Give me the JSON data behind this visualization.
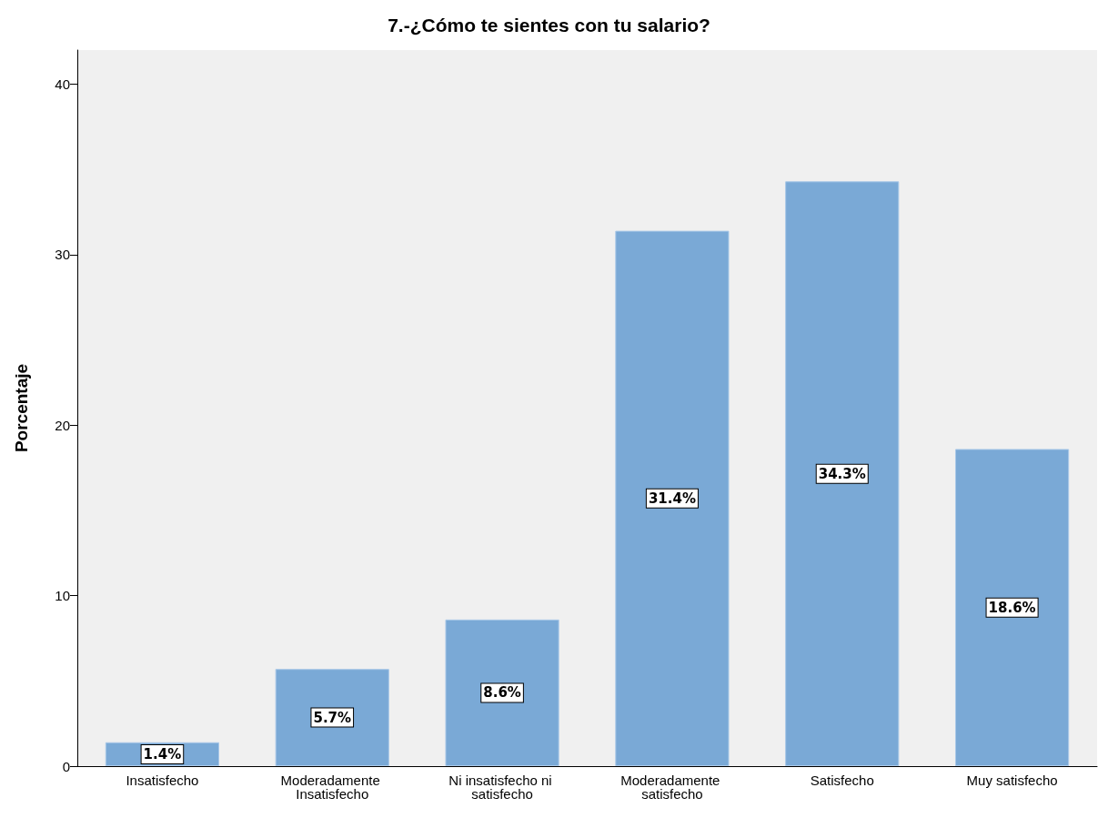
{
  "chart_data": {
    "type": "bar",
    "title": "7.-¿Cómo te sientes con tu salario?",
    "ylabel": "Porcentaje",
    "categories": [
      "Insatisfecho",
      "Moderadamente Insatisfecho",
      "Ni insatisfecho ni satisfecho",
      "Moderadamente satisfecho",
      "Satisfecho",
      "Muy satisfecho"
    ],
    "values": [
      1.4,
      5.7,
      8.6,
      31.4,
      34.3,
      18.6
    ],
    "value_labels": [
      "1.4%",
      "5.7%",
      "8.6%",
      "31.4%",
      "34.3%",
      "18.6%"
    ],
    "color": "#7aa9d6",
    "ylim": [
      0,
      42
    ],
    "yticks": [
      0,
      10,
      20,
      30,
      40
    ],
    "grid": false
  }
}
